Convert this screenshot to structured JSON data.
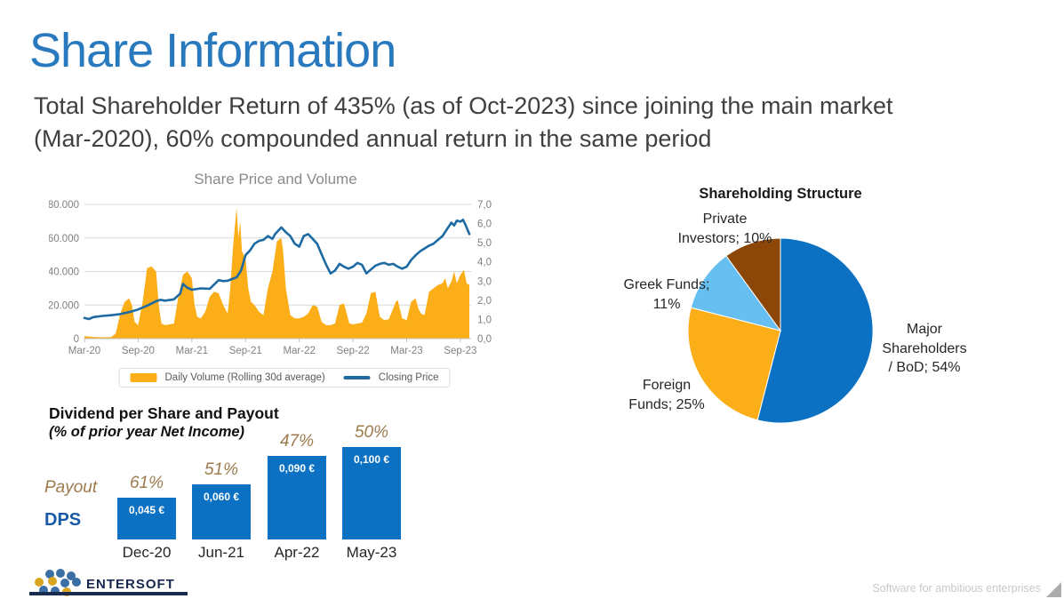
{
  "slide": {
    "title": "Share Information",
    "subtitle_line1": "Total Shareholder Return of 435% (as of Oct-2023) since joining the main market",
    "subtitle_line2": "(Mar-2020), 60% compounded annual return in the same period"
  },
  "colors": {
    "title_blue": "#2879BE",
    "volume_orange": "#FBAE17",
    "price_blue": "#1E6AA2",
    "bar_blue": "#0C71C3",
    "pie_light_blue": "#66BFF0",
    "pie_brown": "#8C4708",
    "payout_text": "#9C7B4D",
    "grid_gray": "#D9D9D9"
  },
  "chart_data": [
    {
      "id": "share_price_volume",
      "type": "area+line",
      "title": "Share Price and Volume",
      "legend_position": "bottom",
      "grid": true,
      "x_tick_months": [
        0,
        6,
        12,
        18,
        24,
        30,
        36,
        42
      ],
      "x_ticks": [
        "Mar-20",
        "Sep-20",
        "Mar-21",
        "Sep-21",
        "Mar-22",
        "Sep-22",
        "Mar-23",
        "Sep-23"
      ],
      "left_axis": {
        "label": "Daily Volume",
        "ticks": [
          "80.000",
          "60.000",
          "40.000",
          "20.000",
          "0"
        ],
        "tick_values": [
          80000,
          60000,
          40000,
          20000,
          0
        ],
        "min": 0,
        "max": 80000
      },
      "right_axis": {
        "label": "Closing Price",
        "ticks": [
          "7,0",
          "6,0",
          "5,0",
          "4,0",
          "3,0",
          "2,0",
          "1,0",
          "0,0"
        ],
        "tick_values": [
          7,
          6,
          5,
          4,
          3,
          2,
          1,
          0
        ],
        "min": 0,
        "max": 7
      },
      "legend": [
        {
          "label": "Daily Volume (Rolling 30d average)",
          "color": "#FBAE17",
          "type": "area"
        },
        {
          "label": "Closing Price",
          "color": "#1E6AA2",
          "type": "line"
        }
      ],
      "x_unit": "months since Mar-2020",
      "volume_series": [
        [
          0,
          1500
        ],
        [
          1,
          1000
        ],
        [
          2,
          800
        ],
        [
          3,
          900
        ],
        [
          3.5,
          3000
        ],
        [
          4,
          15000
        ],
        [
          4.5,
          22000
        ],
        [
          5,
          24000
        ],
        [
          5.3,
          20000
        ],
        [
          5.6,
          10000
        ],
        [
          6,
          8000
        ],
        [
          6.5,
          22000
        ],
        [
          7,
          42000
        ],
        [
          7.5,
          43000
        ],
        [
          8,
          40000
        ],
        [
          8.3,
          20000
        ],
        [
          8.6,
          9000
        ],
        [
          9,
          8000
        ],
        [
          9.5,
          8500
        ],
        [
          10,
          9000
        ],
        [
          10.5,
          25000
        ],
        [
          11,
          38000
        ],
        [
          11.5,
          40000
        ],
        [
          12,
          36000
        ],
        [
          12.3,
          20000
        ],
        [
          12.6,
          13000
        ],
        [
          13,
          12000
        ],
        [
          13.5,
          16000
        ],
        [
          14,
          25000
        ],
        [
          14.5,
          28000
        ],
        [
          15,
          27000
        ],
        [
          15.5,
          20000
        ],
        [
          16,
          15000
        ],
        [
          16.3,
          30000
        ],
        [
          16.6,
          55000
        ],
        [
          17,
          78000
        ],
        [
          17.2,
          60000
        ],
        [
          17.4,
          70000
        ],
        [
          17.6,
          52000
        ],
        [
          18,
          48000
        ],
        [
          18.3,
          30000
        ],
        [
          18.6,
          22000
        ],
        [
          19,
          20000
        ],
        [
          19.5,
          16000
        ],
        [
          20,
          14000
        ],
        [
          20.5,
          30000
        ],
        [
          21,
          40000
        ],
        [
          21.5,
          58000
        ],
        [
          22,
          60000
        ],
        [
          22.2,
          52000
        ],
        [
          22.5,
          30000
        ],
        [
          23,
          14000
        ],
        [
          23.5,
          12000
        ],
        [
          24,
          12000
        ],
        [
          24.5,
          13000
        ],
        [
          25,
          15000
        ],
        [
          25.5,
          20000
        ],
        [
          26,
          19000
        ],
        [
          26.5,
          10000
        ],
        [
          27,
          8000
        ],
        [
          27.5,
          8000
        ],
        [
          28,
          9000
        ],
        [
          28.5,
          20000
        ],
        [
          29,
          21000
        ],
        [
          29.3,
          15000
        ],
        [
          29.6,
          9000
        ],
        [
          30,
          8500
        ],
        [
          30.5,
          9000
        ],
        [
          31,
          9500
        ],
        [
          31.5,
          15000
        ],
        [
          32,
          27000
        ],
        [
          32.5,
          28000
        ],
        [
          33,
          13000
        ],
        [
          33.5,
          11000
        ],
        [
          34,
          11500
        ],
        [
          34.8,
          22000
        ],
        [
          35,
          23000
        ],
        [
          35.5,
          12000
        ],
        [
          36,
          11000
        ],
        [
          36.5,
          22000
        ],
        [
          37,
          24000
        ],
        [
          37.3,
          18000
        ],
        [
          37.6,
          15000
        ],
        [
          38,
          14000
        ],
        [
          38.5,
          28000
        ],
        [
          39,
          30000
        ],
        [
          39.5,
          32000
        ],
        [
          40,
          33000
        ],
        [
          40.3,
          36000
        ],
        [
          40.6,
          30000
        ],
        [
          41,
          34000
        ],
        [
          41.3,
          40000
        ],
        [
          41.6,
          33000
        ],
        [
          42,
          38000
        ],
        [
          42.4,
          41000
        ],
        [
          42.7,
          33000
        ],
        [
          43,
          32000
        ]
      ],
      "price_series": [
        [
          0,
          1.08
        ],
        [
          0.5,
          1.02
        ],
        [
          1,
          1.12
        ],
        [
          2,
          1.18
        ],
        [
          3,
          1.22
        ],
        [
          4,
          1.28
        ],
        [
          5,
          1.38
        ],
        [
          6,
          1.52
        ],
        [
          7,
          1.72
        ],
        [
          8,
          1.95
        ],
        [
          8.5,
          2.02
        ],
        [
          9,
          1.98
        ],
        [
          10,
          2.05
        ],
        [
          10.7,
          2.35
        ],
        [
          11,
          2.85
        ],
        [
          11.5,
          2.65
        ],
        [
          12,
          2.55
        ],
        [
          13,
          2.62
        ],
        [
          14,
          2.6
        ],
        [
          15,
          3.05
        ],
        [
          15.5,
          3.0
        ],
        [
          16,
          3.02
        ],
        [
          17,
          3.2
        ],
        [
          17.5,
          3.55
        ],
        [
          18,
          4.35
        ],
        [
          18.5,
          4.6
        ],
        [
          19,
          4.95
        ],
        [
          19.5,
          5.1
        ],
        [
          20,
          5.15
        ],
        [
          20.5,
          5.35
        ],
        [
          21,
          5.2
        ],
        [
          21.3,
          5.45
        ],
        [
          22,
          5.8
        ],
        [
          22.5,
          5.55
        ],
        [
          23,
          5.35
        ],
        [
          23.5,
          4.95
        ],
        [
          24,
          4.8
        ],
        [
          24.5,
          5.35
        ],
        [
          25,
          5.45
        ],
        [
          25.5,
          5.2
        ],
        [
          26,
          4.95
        ],
        [
          26.5,
          4.4
        ],
        [
          27,
          3.85
        ],
        [
          27.5,
          3.4
        ],
        [
          28,
          3.55
        ],
        [
          28.5,
          3.9
        ],
        [
          29,
          3.75
        ],
        [
          29.5,
          3.65
        ],
        [
          30,
          3.75
        ],
        [
          30.5,
          3.95
        ],
        [
          31,
          3.85
        ],
        [
          31.5,
          3.4
        ],
        [
          32,
          3.6
        ],
        [
          32.5,
          3.8
        ],
        [
          33,
          3.9
        ],
        [
          33.5,
          3.95
        ],
        [
          34,
          3.85
        ],
        [
          34.5,
          3.9
        ],
        [
          35,
          3.75
        ],
        [
          35.5,
          3.65
        ],
        [
          36,
          3.75
        ],
        [
          36.5,
          4.1
        ],
        [
          37,
          4.35
        ],
        [
          37.5,
          4.55
        ],
        [
          38,
          4.7
        ],
        [
          38.5,
          4.85
        ],
        [
          39,
          4.95
        ],
        [
          39.5,
          5.15
        ],
        [
          40,
          5.35
        ],
        [
          40.5,
          5.7
        ],
        [
          41,
          6.05
        ],
        [
          41.3,
          5.9
        ],
        [
          41.6,
          6.15
        ],
        [
          42,
          6.1
        ],
        [
          42.3,
          6.2
        ],
        [
          42.6,
          5.9
        ],
        [
          43,
          5.45
        ]
      ]
    },
    {
      "id": "shareholding_structure",
      "type": "pie",
      "title": "Shareholding Structure",
      "start_angle_deg": -90,
      "direction": "clockwise",
      "slices": [
        {
          "label": "Major Shareholders / BoD",
          "value": 54,
          "color": "#0C71C3",
          "display_lines": [
            "Major",
            "Shareholders",
            "/ BoD; 54%"
          ]
        },
        {
          "label": "Foreign Funds",
          "value": 25,
          "color": "#FBAE17",
          "display_lines": [
            "Foreign",
            "Funds; 25%"
          ]
        },
        {
          "label": "Greek Funds",
          "value": 11,
          "color": "#66BFF0",
          "display_lines": [
            "Greek Funds;",
            "11%"
          ]
        },
        {
          "label": "Private Investors",
          "value": 10,
          "color": "#8C4708",
          "display_lines": [
            "Private",
            "Investors; 10%"
          ]
        }
      ]
    },
    {
      "id": "dividend_payout",
      "type": "bar",
      "title": "Dividend per Share and Payout",
      "subtitle": "(% of prior year Net Income)",
      "row_labels": {
        "payout": "Payout",
        "dps": "DPS"
      },
      "categories": [
        "Dec-20",
        "Jun-21",
        "Apr-22",
        "May-23"
      ],
      "dps_numeric": [
        0.045,
        0.06,
        0.09,
        0.1
      ],
      "dps_labels": [
        "0,045 €",
        "0,060 €",
        "0,090 €",
        "0,100 €"
      ],
      "payout_labels": [
        "61%",
        "51%",
        "47%",
        "50%"
      ],
      "bar_color": "#0C71C3"
    }
  ],
  "footer": {
    "logo_text": "ENTERSOFT",
    "tagline": "Software for ambitious enterprises"
  }
}
